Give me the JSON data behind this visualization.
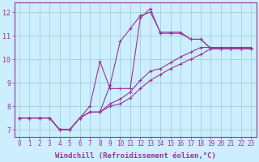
{
  "xlabel": "Windchill (Refroidissement éolien,°C)",
  "background_color": "#cceeff",
  "line_color": "#993399",
  "xlim": [
    -0.5,
    23.5
  ],
  "ylim": [
    6.7,
    12.4
  ],
  "xticks": [
    0,
    1,
    2,
    3,
    4,
    5,
    6,
    7,
    8,
    9,
    10,
    11,
    12,
    13,
    14,
    15,
    16,
    17,
    18,
    19,
    20,
    21,
    22,
    23
  ],
  "yticks": [
    7,
    8,
    9,
    10,
    11,
    12
  ],
  "series": [
    {
      "x": [
        0,
        1,
        2,
        3,
        4,
        5,
        6,
        7,
        8,
        9,
        10,
        11,
        12,
        13,
        14,
        15,
        16,
        17,
        18,
        19,
        20,
        21,
        22,
        23
      ],
      "y": [
        7.5,
        7.5,
        7.5,
        7.5,
        7.0,
        7.0,
        7.5,
        7.75,
        7.75,
        8.9,
        10.75,
        11.3,
        11.85,
        12.0,
        11.15,
        11.15,
        11.15,
        10.85,
        10.85,
        10.45,
        10.45,
        10.45,
        10.45,
        10.45
      ]
    },
    {
      "x": [
        0,
        1,
        2,
        3,
        4,
        5,
        6,
        7,
        8,
        9,
        10,
        11,
        12,
        13,
        14,
        15,
        16,
        17,
        18,
        19,
        20,
        21,
        22,
        23
      ],
      "y": [
        7.5,
        7.5,
        7.5,
        7.5,
        7.0,
        7.0,
        7.5,
        8.0,
        9.9,
        8.75,
        8.75,
        8.75,
        11.75,
        12.15,
        11.1,
        11.1,
        11.1,
        10.85,
        10.85,
        10.45,
        10.45,
        10.45,
        10.45,
        10.45
      ]
    },
    {
      "x": [
        0,
        1,
        2,
        3,
        4,
        5,
        6,
        7,
        8,
        9,
        10,
        11,
        12,
        13,
        14,
        15,
        16,
        17,
        18,
        19,
        20,
        21,
        22,
        23
      ],
      "y": [
        7.5,
        7.5,
        7.5,
        7.5,
        7.0,
        7.0,
        7.5,
        7.75,
        7.75,
        8.1,
        8.3,
        8.6,
        9.1,
        9.5,
        9.6,
        9.85,
        10.1,
        10.3,
        10.5,
        10.5,
        10.5,
        10.5,
        10.5,
        10.5
      ]
    },
    {
      "x": [
        0,
        1,
        2,
        3,
        4,
        5,
        6,
        7,
        8,
        9,
        10,
        11,
        12,
        13,
        14,
        15,
        16,
        17,
        18,
        19,
        20,
        21,
        22,
        23
      ],
      "y": [
        7.5,
        7.5,
        7.5,
        7.5,
        7.0,
        7.0,
        7.5,
        7.75,
        7.75,
        8.0,
        8.1,
        8.35,
        8.75,
        9.1,
        9.35,
        9.6,
        9.8,
        10.0,
        10.2,
        10.45,
        10.45,
        10.45,
        10.45,
        10.45
      ]
    }
  ],
  "grid_color": "#99cccc",
  "tick_font_size": 5.5,
  "xlabel_font_size": 6.5
}
